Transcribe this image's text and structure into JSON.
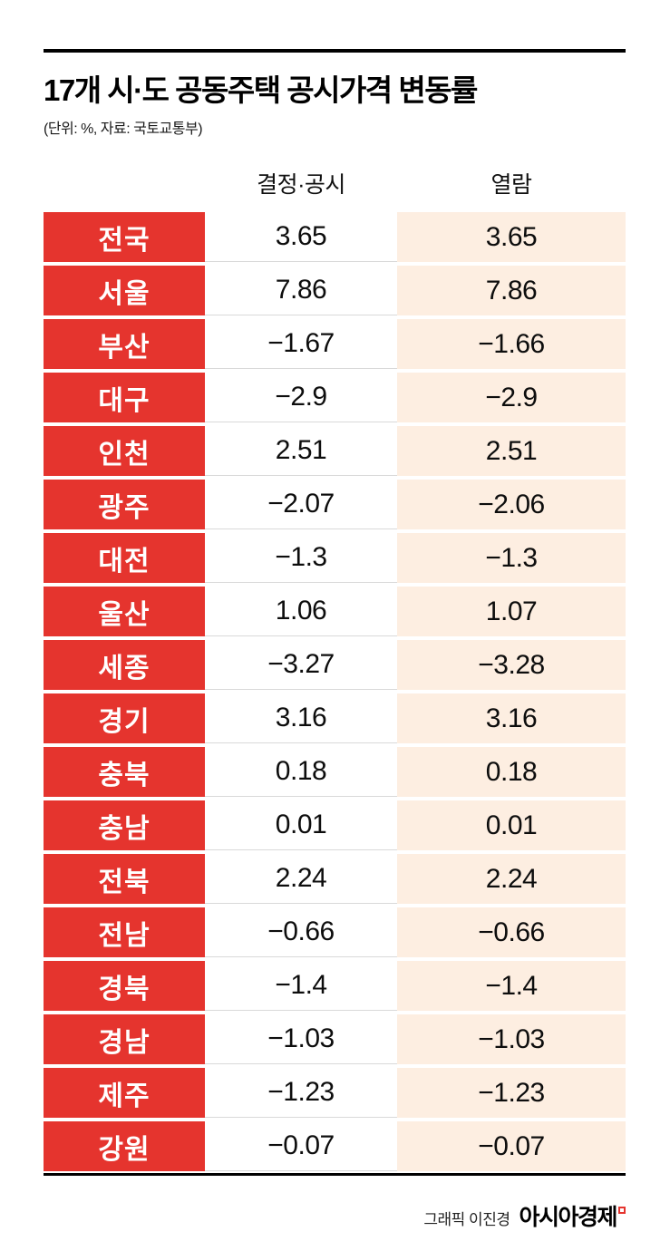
{
  "title": "17개 시·도 공동주택 공시가격 변동률",
  "subtitle": "(단위: %, 자료: 국토교통부)",
  "table": {
    "columns": [
      "결정·공시",
      "열람"
    ],
    "rows": [
      {
        "region": "전국",
        "decided": "3.65",
        "preview": "3.65"
      },
      {
        "region": "서울",
        "decided": "7.86",
        "preview": "7.86"
      },
      {
        "region": "부산",
        "decided": "−1.67",
        "preview": "−1.66"
      },
      {
        "region": "대구",
        "decided": "−2.9",
        "preview": "−2.9"
      },
      {
        "region": "인천",
        "decided": "2.51",
        "preview": "2.51"
      },
      {
        "region": "광주",
        "decided": "−2.07",
        "preview": "−2.06"
      },
      {
        "region": "대전",
        "decided": "−1.3",
        "preview": "−1.3"
      },
      {
        "region": "울산",
        "decided": "1.06",
        "preview": "1.07"
      },
      {
        "region": "세종",
        "decided": "−3.27",
        "preview": "−3.28"
      },
      {
        "region": "경기",
        "decided": "3.16",
        "preview": "3.16"
      },
      {
        "region": "충북",
        "decided": "0.18",
        "preview": "0.18"
      },
      {
        "region": "충남",
        "decided": "0.01",
        "preview": "0.01"
      },
      {
        "region": "전북",
        "decided": "2.24",
        "preview": "2.24"
      },
      {
        "region": "전남",
        "decided": "−0.66",
        "preview": "−0.66"
      },
      {
        "region": "경북",
        "decided": "−1.4",
        "preview": "−1.4"
      },
      {
        "region": "경남",
        "decided": "−1.03",
        "preview": "−1.03"
      },
      {
        "region": "제주",
        "decided": "−1.23",
        "preview": "−1.23"
      },
      {
        "region": "강원",
        "decided": "−0.07",
        "preview": "−0.07"
      }
    ]
  },
  "footer": {
    "credit": "그래픽 이진경",
    "brand": "아시아경제"
  },
  "colors": {
    "red": "#e5342e",
    "peach": "#fdeee1"
  },
  "chart_data": {
    "type": "table",
    "title": "17개 시·도 공동주택 공시가격 변동률",
    "unit": "%",
    "source": "국토교통부",
    "categories": [
      "전국",
      "서울",
      "부산",
      "대구",
      "인천",
      "광주",
      "대전",
      "울산",
      "세종",
      "경기",
      "충북",
      "충남",
      "전북",
      "전남",
      "경북",
      "경남",
      "제주",
      "강원"
    ],
    "series": [
      {
        "name": "결정·공시",
        "values": [
          3.65,
          7.86,
          -1.67,
          -2.9,
          2.51,
          -2.07,
          -1.3,
          1.06,
          -3.27,
          3.16,
          0.18,
          0.01,
          2.24,
          -0.66,
          -1.4,
          -1.03,
          -1.23,
          -0.07
        ]
      },
      {
        "name": "열람",
        "values": [
          3.65,
          7.86,
          -1.66,
          -2.9,
          2.51,
          -2.06,
          -1.3,
          1.07,
          -3.28,
          3.16,
          0.18,
          0.01,
          2.24,
          -0.66,
          -1.4,
          -1.03,
          -1.23,
          -0.07
        ]
      }
    ]
  }
}
